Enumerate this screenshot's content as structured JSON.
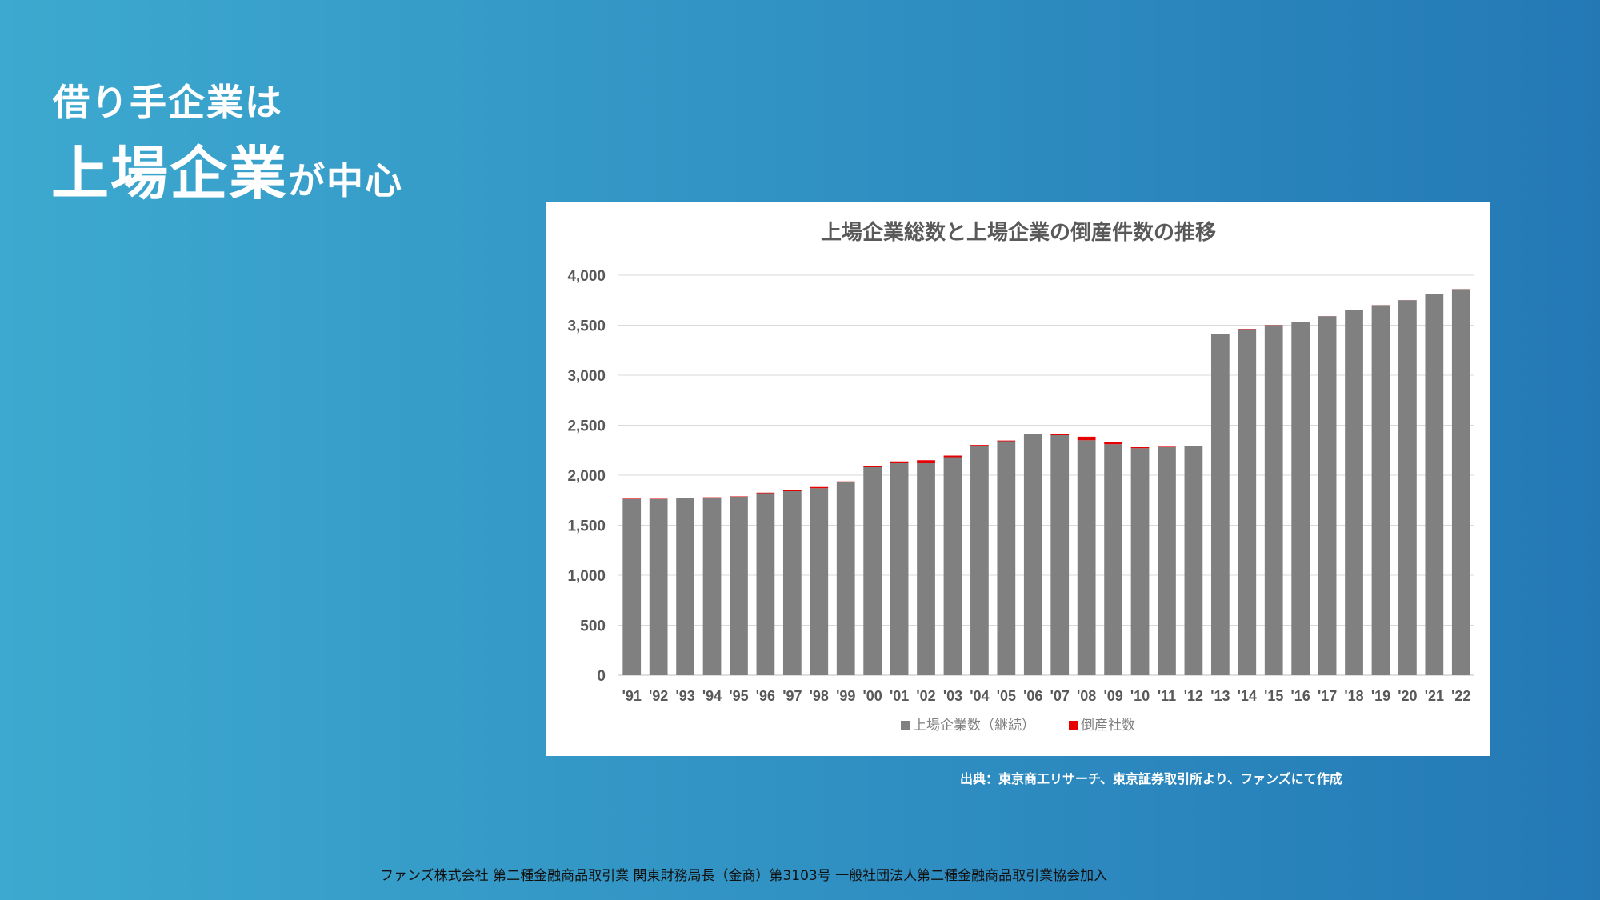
{
  "heading": {
    "line1": "借り手企業は",
    "line2_big": "上場企業",
    "line2_small": "が中心"
  },
  "source": "出典：東京商工リサーチ、東京証券取引所より、ファンズにて作成",
  "footer": "ファンズ株式会社 第二種金融商品取引業 関東財務局長（金商）第3103号 一般社団法人第二種金融商品取引業協会加入",
  "chart_data": {
    "type": "bar",
    "stacked": true,
    "title": "上場企業総数と上場企業の倒産件数の推移",
    "categories": [
      "'91",
      "'92",
      "'93",
      "'94",
      "'95",
      "'96",
      "'97",
      "'98",
      "'99",
      "'00",
      "'01",
      "'02",
      "'03",
      "'04",
      "'05",
      "'06",
      "'07",
      "'08",
      "'09",
      "'10",
      "'11",
      "'12",
      "'13",
      "'14",
      "'15",
      "'16",
      "'17",
      "'18",
      "'19",
      "'20",
      "'21",
      "'22"
    ],
    "series": [
      {
        "name": "上場企業数（継続）",
        "color": "#808080",
        "values": [
          1760,
          1760,
          1770,
          1775,
          1785,
          1820,
          1840,
          1870,
          1930,
          2080,
          2120,
          2120,
          2180,
          2290,
          2340,
          2410,
          2400,
          2350,
          2310,
          2270,
          2280,
          2290,
          3410,
          3460,
          3500,
          3530,
          3590,
          3650,
          3700,
          3750,
          3810,
          3860
        ]
      },
      {
        "name": "倒産社数",
        "color": "#e60000",
        "values": [
          5,
          4,
          5,
          4,
          4,
          6,
          13,
          12,
          8,
          15,
          18,
          30,
          16,
          13,
          7,
          5,
          9,
          35,
          20,
          10,
          5,
          6,
          5,
          3,
          2,
          2,
          1,
          1,
          1,
          1,
          1,
          1
        ]
      }
    ],
    "ylim": [
      0,
      4000
    ],
    "yticks": [
      0,
      500,
      1000,
      1500,
      2000,
      2500,
      3000,
      3500,
      4000
    ],
    "ytick_labels": [
      "0",
      "500",
      "1,000",
      "1,500",
      "2,000",
      "2,500",
      "3,000",
      "3,500",
      "4,000"
    ],
    "grid": true,
    "legend_position": "bottom"
  }
}
